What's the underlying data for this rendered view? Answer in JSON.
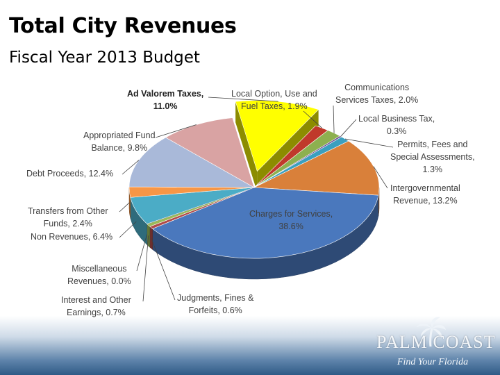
{
  "slide": {
    "title": "Total City Revenues",
    "subtitle": "Fiscal Year 2013 Budget"
  },
  "logo": {
    "name": "PALM COAST",
    "tagline": "Find Your Florida"
  },
  "colors": {
    "background": "#ffffff",
    "footer_band": "#2f5a86"
  },
  "chart_data": {
    "type": "pie",
    "title": "",
    "three_d": true,
    "slices": [
      {
        "key": "ad_valorem",
        "label_lines": [
          "Ad Valorem Taxes,",
          "11.0%"
        ],
        "value": 11.0,
        "color": "#ffff00",
        "exploded": true,
        "bold_label": true
      },
      {
        "key": "local_option",
        "label_lines": [
          "Local Option, Use and",
          "Fuel Taxes, 1.9%"
        ],
        "value": 1.9,
        "color": "#c0392b"
      },
      {
        "key": "communications",
        "label_lines": [
          "Communications",
          "Services Taxes, 2.0%"
        ],
        "value": 2.0,
        "color": "#8db04f"
      },
      {
        "key": "local_business",
        "label_lines": [
          "Local Business Tax,",
          "0.3%"
        ],
        "value": 0.3,
        "color": "#6a4c93"
      },
      {
        "key": "permits",
        "label_lines": [
          "Permits, Fees and",
          "Special Assessments,",
          "1.3%"
        ],
        "value": 1.3,
        "color": "#3a9fbf"
      },
      {
        "key": "intergovernmental",
        "label_lines": [
          "Intergovernmental",
          "Revenue, 13.2%"
        ],
        "value": 13.2,
        "color": "#d9803a"
      },
      {
        "key": "charges",
        "label_lines": [
          "Charges for Services,",
          "38.6%"
        ],
        "value": 38.6,
        "color": "#4a78bd"
      },
      {
        "key": "judgments",
        "label_lines": [
          "Judgments, Fines &",
          "Forfeits, 0.6%"
        ],
        "value": 0.6,
        "color": "#b04a48"
      },
      {
        "key": "interest",
        "label_lines": [
          "Interest and Other",
          "Earnings, 0.7%"
        ],
        "value": 0.7,
        "color": "#9bbb59"
      },
      {
        "key": "miscellaneous",
        "label_lines": [
          "Miscellaneous",
          "Revenues, 0.0%"
        ],
        "value": 0.0,
        "color": "#8064a2"
      },
      {
        "key": "non_revenues",
        "label_lines": [
          "Non Revenues, 6.4%"
        ],
        "value": 6.4,
        "color": "#4bacc6"
      },
      {
        "key": "transfers",
        "label_lines": [
          "Transfers from Other",
          "Funds, 2.4%"
        ],
        "value": 2.4,
        "color": "#f79646"
      },
      {
        "key": "debt_proceeds",
        "label_lines": [
          "Debt Proceeds, 12.4%"
        ],
        "value": 12.4,
        "color": "#a9b9d9"
      },
      {
        "key": "appropriated",
        "label_lines": [
          "Appropriated Fund",
          "Balance, 9.8%"
        ],
        "value": 9.8,
        "color": "#d9a3a3"
      }
    ]
  }
}
